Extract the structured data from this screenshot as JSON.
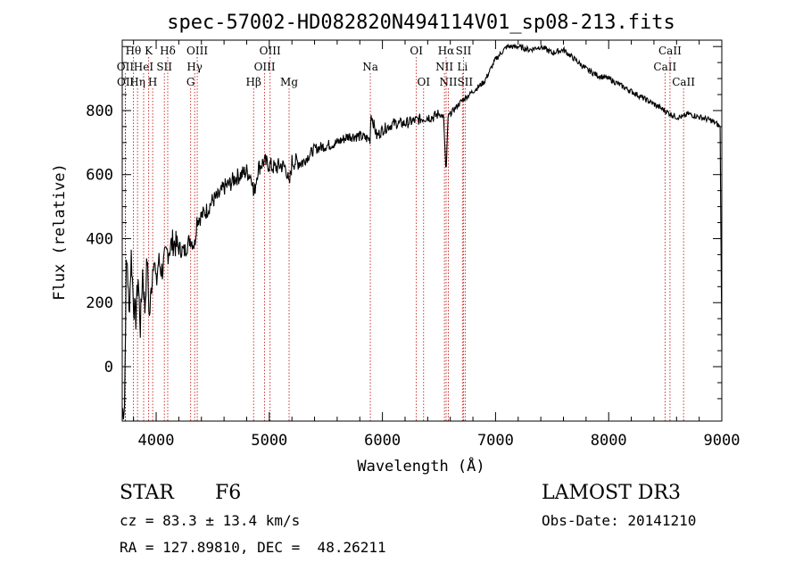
{
  "chart_data": {
    "type": "line",
    "title": "spec-57002-HD082820N494114V01_sp08-213.fits",
    "xlabel": "Wavelength (Å)",
    "ylabel": "Flux (relative)",
    "xlim": [
      3700,
      9000
    ],
    "ylim": [
      -170,
      1020
    ],
    "x_ticks": [
      4000,
      5000,
      6000,
      7000,
      8000,
      9000
    ],
    "y_ticks": [
      0,
      200,
      400,
      600,
      800
    ],
    "series": [
      {
        "name": "flux",
        "x": [
          3700,
          3720,
          3735,
          3745,
          3760,
          3780,
          3800,
          3820,
          3840,
          3860,
          3880,
          3900,
          3920,
          3940,
          3960,
          3980,
          4000,
          4020,
          4050,
          4100,
          4150,
          4200,
          4250,
          4300,
          4340,
          4360,
          4400,
          4450,
          4500,
          4550,
          4600,
          4650,
          4700,
          4750,
          4800,
          4850,
          4861,
          4900,
          4950,
          5000,
          5050,
          5100,
          5150,
          5175,
          5200,
          5300,
          5400,
          5500,
          5600,
          5700,
          5800,
          5890,
          5900,
          5950,
          6000,
          6100,
          6200,
          6300,
          6400,
          6450,
          6500,
          6540,
          6563,
          6580,
          6600,
          6650,
          6700,
          6800,
          6900,
          7000,
          7100,
          7200,
          7300,
          7400,
          7500,
          7600,
          7700,
          7800,
          7900,
          8000,
          8100,
          8200,
          8300,
          8400,
          8498,
          8542,
          8600,
          8662,
          8700,
          8800,
          8900,
          8950,
          8985,
          9000
        ],
        "y": [
          -140,
          -120,
          300,
          330,
          160,
          350,
          200,
          150,
          280,
          120,
          300,
          180,
          340,
          150,
          260,
          360,
          250,
          330,
          300,
          360,
          390,
          370,
          360,
          400,
          380,
          460,
          470,
          490,
          520,
          530,
          560,
          570,
          590,
          600,
          610,
          590,
          530,
          620,
          640,
          630,
          620,
          630,
          620,
          560,
          640,
          640,
          680,
          690,
          700,
          720,
          720,
          710,
          790,
          720,
          740,
          760,
          760,
          770,
          780,
          780,
          790,
          780,
          600,
          780,
          790,
          810,
          830,
          860,
          890,
          960,
          1000,
          1000,
          990,
          1000,
          980,
          990,
          960,
          930,
          910,
          900,
          880,
          860,
          840,
          820,
          800,
          790,
          780,
          780,
          790,
          780,
          770,
          760,
          750,
          50
        ]
      }
    ],
    "spectral_lines": [
      {
        "name": "Hθ",
        "wavelength": 3798,
        "row": 0
      },
      {
        "name": "OII",
        "wavelength": 3727,
        "row": 1
      },
      {
        "name": "OII",
        "wavelength": 3729,
        "row": 2
      },
      {
        "name": "Hη",
        "wavelength": 3835,
        "row": 2
      },
      {
        "name": "HeI",
        "wavelength": 3889,
        "row": 1
      },
      {
        "name": "K",
        "wavelength": 3934,
        "row": 0
      },
      {
        "name": "H",
        "wavelength": 3969,
        "row": 2
      },
      {
        "name": "SII",
        "wavelength": 4072,
        "row": 1
      },
      {
        "name": "Hδ",
        "wavelength": 4102,
        "row": 0
      },
      {
        "name": "OIII",
        "wavelength": 4363,
        "row": 0
      },
      {
        "name": "Hγ",
        "wavelength": 4340,
        "row": 1
      },
      {
        "name": "G",
        "wavelength": 4305,
        "row": 2
      },
      {
        "name": "Hβ",
        "wavelength": 4861,
        "row": 2
      },
      {
        "name": "OIII",
        "wavelength": 4959,
        "row": 1
      },
      {
        "name": "OIII",
        "wavelength": 5007,
        "row": 0
      },
      {
        "name": "Mg",
        "wavelength": 5175,
        "row": 2
      },
      {
        "name": "Na",
        "wavelength": 5893,
        "row": 1
      },
      {
        "name": "OI",
        "wavelength": 6300,
        "row": 0
      },
      {
        "name": "OI",
        "wavelength": 6364,
        "row": 2
      },
      {
        "name": "NII",
        "wavelength": 6548,
        "row": 1
      },
      {
        "name": "Hα",
        "wavelength": 6563,
        "row": 0
      },
      {
        "name": "NII",
        "wavelength": 6583,
        "row": 2
      },
      {
        "name": "SII",
        "wavelength": 6717,
        "row": 0
      },
      {
        "name": "Li",
        "wavelength": 6707,
        "row": 1
      },
      {
        "name": "SII",
        "wavelength": 6731,
        "row": 2
      },
      {
        "name": "CaII",
        "wavelength": 8498,
        "row": 1
      },
      {
        "name": "CaII",
        "wavelength": 8542,
        "row": 0
      },
      {
        "name": "CaII",
        "wavelength": 8662,
        "row": 2
      }
    ]
  },
  "info": {
    "object_class": "STAR",
    "subclass": "F6",
    "survey": "LAMOST DR3",
    "cz": "cz = 83.3 ± 13.4 km/s",
    "obs_date": "Obs-Date: 20141210",
    "coords": "RA = 127.89810, DEC =  48.26211"
  }
}
